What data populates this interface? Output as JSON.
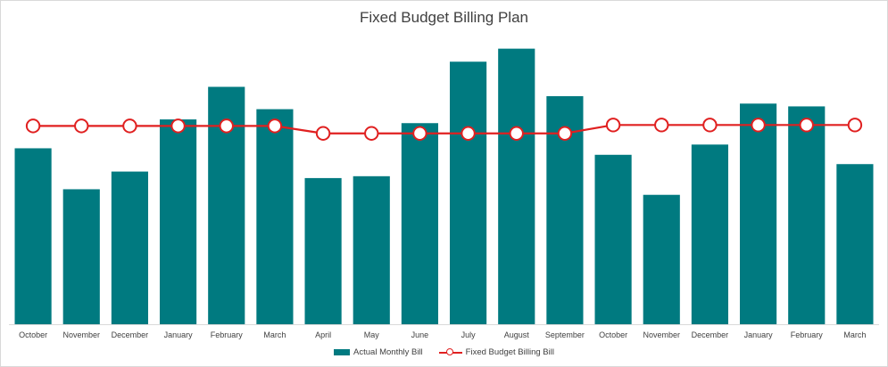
{
  "chart_data": {
    "type": "bar",
    "title": "Fixed Budget Billing Plan",
    "categories": [
      "October",
      "November",
      "December",
      "January",
      "February",
      "March",
      "April",
      "May",
      "June",
      "July",
      "August",
      "September",
      "October",
      "November",
      "December",
      "January",
      "February",
      "March"
    ],
    "series": [
      {
        "name": "Actual Monthly Bill",
        "type": "bar",
        "color": "#007a80",
        "values": [
          189,
          145,
          164,
          220,
          255,
          231,
          157,
          159,
          216,
          282,
          296,
          245,
          182,
          139,
          193,
          237,
          234,
          172
        ]
      },
      {
        "name": "Fixed Budget Billing Bill",
        "type": "line",
        "color": "#e02020",
        "marker": "open-circle",
        "values": [
          213,
          213,
          213,
          213,
          213,
          213,
          205,
          205,
          205,
          205,
          205,
          205,
          214,
          214,
          214,
          214,
          214,
          214
        ]
      }
    ],
    "ylim": [
      0,
      310
    ],
    "xlabel": "",
    "ylabel": "",
    "grid": false,
    "legend": "bottom"
  }
}
